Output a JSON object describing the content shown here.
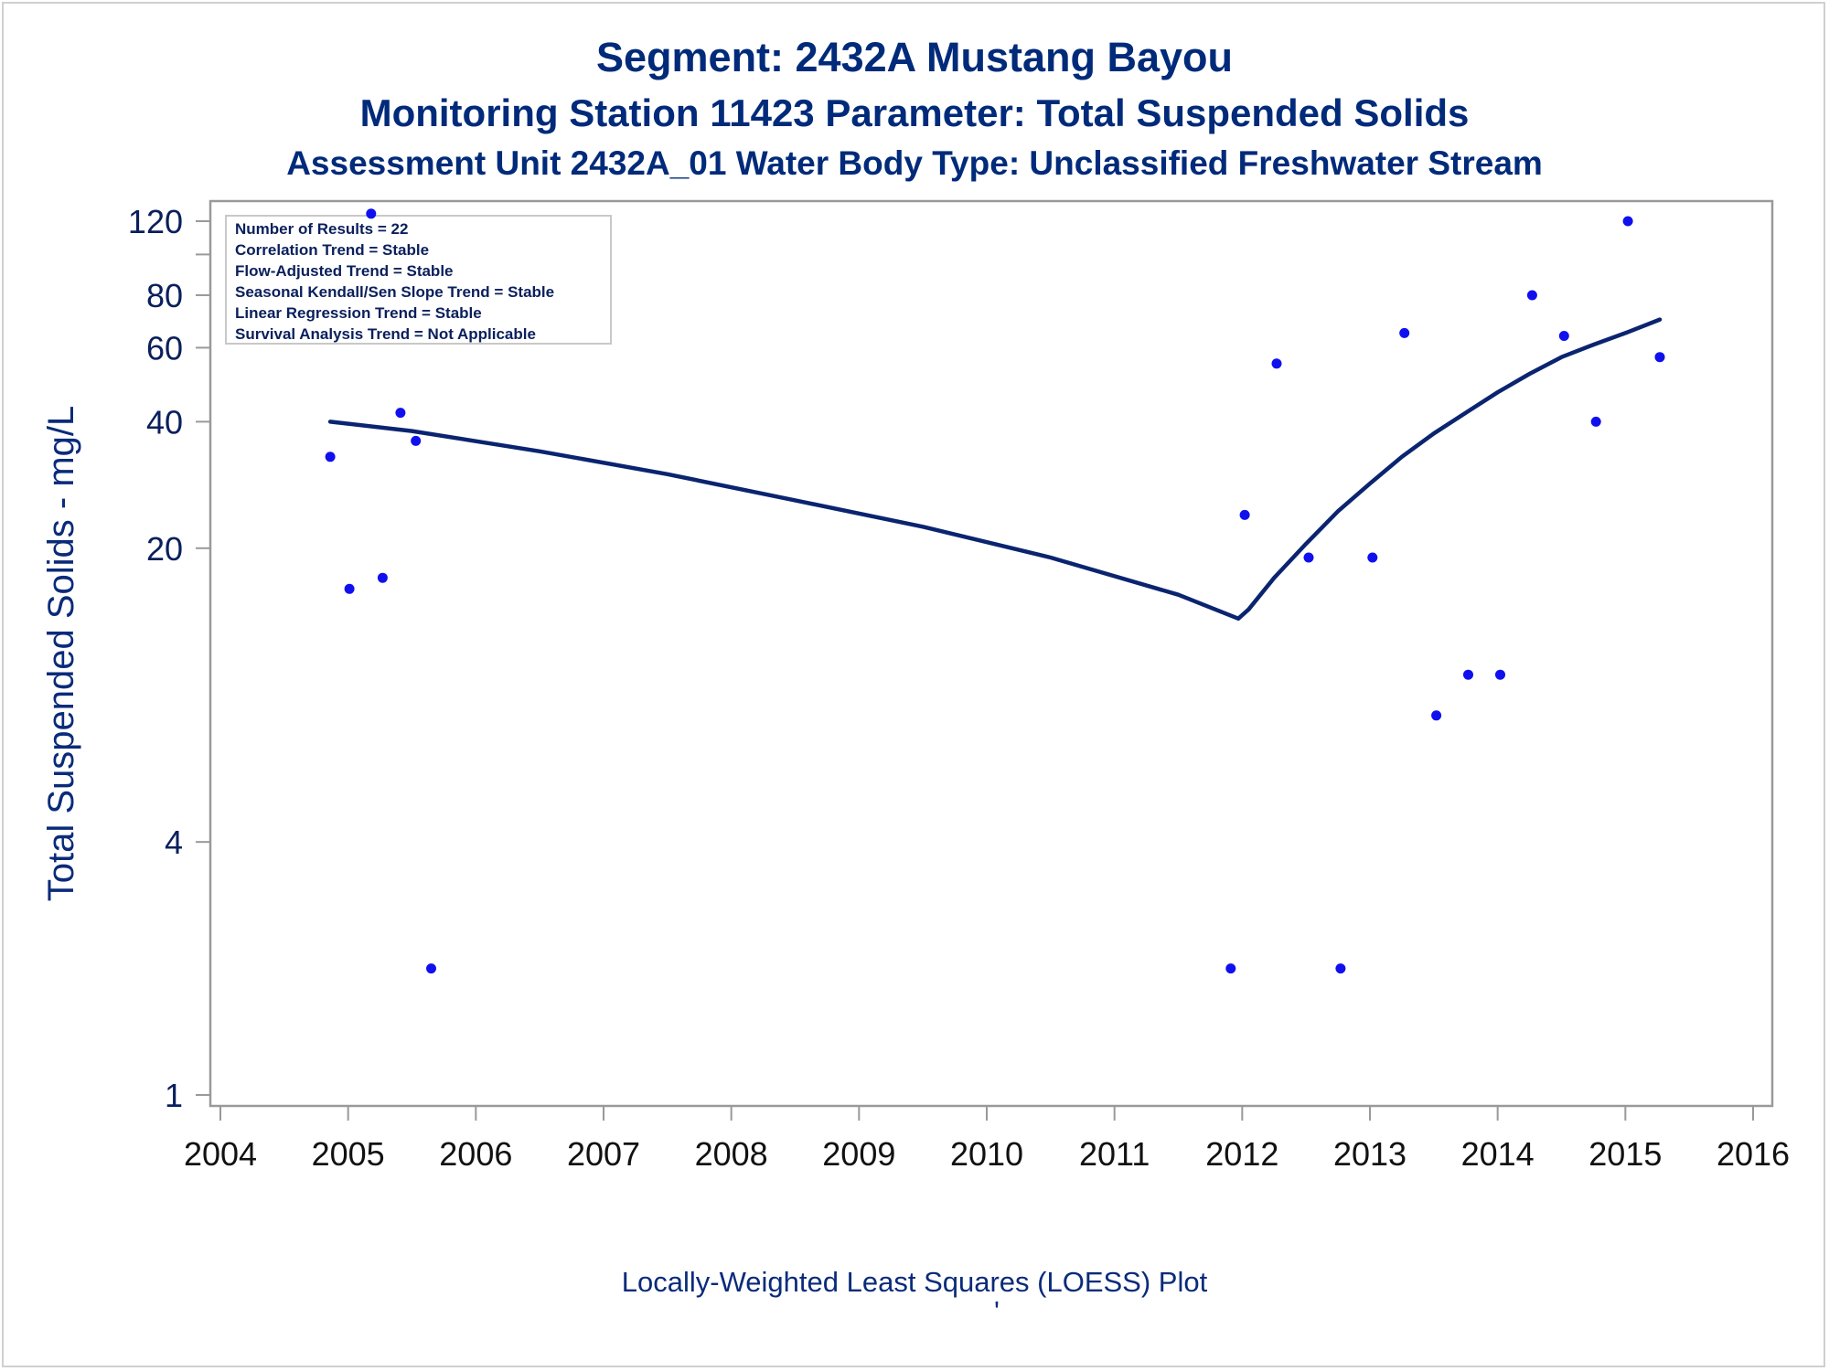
{
  "titles": {
    "line1": "Segment: 2432A  Mustang Bayou",
    "line2": "Monitoring Station 11423 Parameter: Total Suspended Solids",
    "line3": "Assessment Unit 2432A_01   Water Body Type: Unclassified Freshwater Stream"
  },
  "stats": [
    "Number of Results = 22",
    "Correlation Trend = Stable",
    "Flow-Adjusted Trend = Stable",
    "Seasonal Kendall/Sen Slope Trend = Stable",
    "Linear Regression Trend = Stable",
    "Survival Analysis Trend = Not Applicable"
  ],
  "footnote": "Locally-Weighted Least Squares (LOESS) Plot",
  "footnote_mark": "'",
  "colors": {
    "points": "#1010ee",
    "loess": "#0a2470",
    "text": "#002a7a",
    "axis": "#999999"
  },
  "chart_data": {
    "type": "scatter",
    "title": "Segment: 2432A  Mustang Bayou",
    "xlabel": "",
    "ylabel": "Total Suspended Solids - mg/L",
    "y_scale": "log",
    "xlim": [
      2004,
      2016
    ],
    "ylim": [
      1,
      130
    ],
    "x_ticks": [
      "2004",
      "2005",
      "2006",
      "2007",
      "2008",
      "2009",
      "2010",
      "2011",
      "2012",
      "2013",
      "2014",
      "2015",
      "2016"
    ],
    "y_ticks": [
      "1",
      "4",
      "20",
      "40",
      "60",
      "80",
      "120"
    ],
    "y_minor_ticks": [
      100
    ],
    "grid": false,
    "series": [
      {
        "type": "scatter",
        "x": [
          2004.86,
          2005.01,
          2005.18,
          2005.27,
          2005.41,
          2005.53,
          2005.65,
          2011.91,
          2012.02,
          2012.27,
          2012.52,
          2012.77,
          2013.02,
          2013.27,
          2013.52,
          2013.77,
          2014.02,
          2014.27,
          2014.52,
          2014.77,
          2015.02,
          2015.27
        ],
        "y": [
          33,
          16,
          125,
          17,
          42,
          36,
          2,
          2,
          24,
          55,
          19,
          2,
          19,
          65,
          8,
          10,
          10,
          80,
          64,
          40,
          120,
          57
        ]
      },
      {
        "type": "line",
        "x": [
          2004.86,
          2005.5,
          2006.5,
          2007.5,
          2008.5,
          2009.5,
          2010.5,
          2011.5,
          2011.97,
          2012.05,
          2012.25,
          2012.5,
          2012.75,
          2013.0,
          2013.25,
          2013.5,
          2013.75,
          2014.0,
          2014.25,
          2014.5,
          2014.75,
          2015.0,
          2015.27
        ],
        "y": [
          40,
          38,
          34,
          30,
          26,
          22.5,
          19,
          15.5,
          13.6,
          14.3,
          17,
          20.5,
          24.5,
          28.5,
          33,
          37.5,
          42,
          47,
          52,
          57,
          61,
          65,
          70
        ]
      }
    ]
  }
}
